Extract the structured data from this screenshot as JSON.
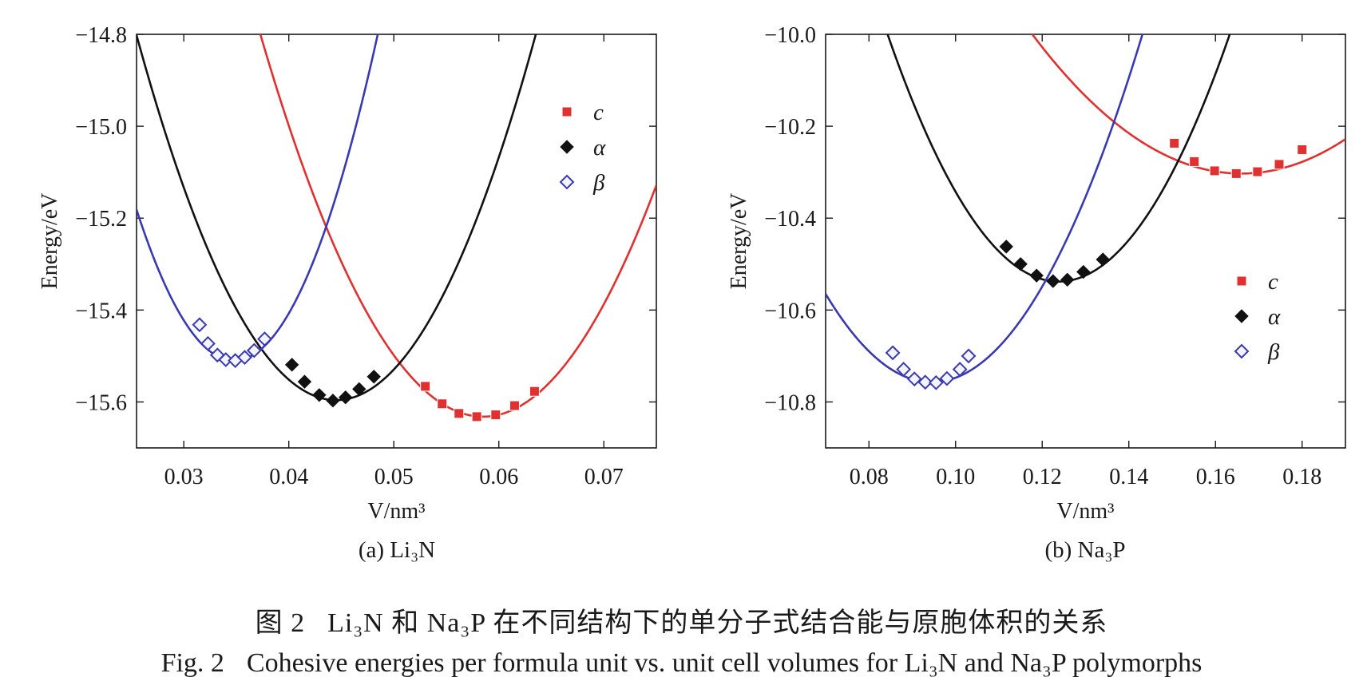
{
  "caption": {
    "cn_prefix": "图 2",
    "cn_text": "Li₃N 和 Na₃P 在不同结构下的单分子式结合能与原胞体积的关系",
    "en_prefix": "Fig. 2",
    "en_text": "Cohesive energies per formula unit vs. unit cell volumes for Li₃N and Na₃P polymorphs"
  },
  "colors": {
    "c": "#e03030",
    "alpha": "#111111",
    "beta": "#3a3ab0"
  },
  "chart_data": [
    {
      "type": "line",
      "panel_label": "(a) Li₃N",
      "xlabel": "V/nm³",
      "ylabel": "Energy/eV",
      "xlim": [
        0.0255,
        0.075
      ],
      "ylim": [
        -15.7,
        -14.8
      ],
      "xticks": [
        "0.03",
        "0.04",
        "0.05",
        "0.06",
        "0.07"
      ],
      "yticks": [
        "-14.8",
        "-15.0",
        "-15.2",
        "-15.4",
        "-15.6"
      ],
      "legend_position": "top-right",
      "series": [
        {
          "name": "c",
          "marker": "square",
          "color_key": "c",
          "curve": {
            "x0": 0.0585,
            "e0": -15.632,
            "k": 1850
          },
          "points": [
            [
              0.053,
              -15.566
            ],
            [
              0.0546,
              -15.604
            ],
            [
              0.0562,
              -15.625
            ],
            [
              0.0579,
              -15.632
            ],
            [
              0.0597,
              -15.628
            ],
            [
              0.0615,
              -15.608
            ],
            [
              0.0634,
              -15.577
            ]
          ]
        },
        {
          "name": "α",
          "marker": "diamond",
          "color_key": "alpha",
          "curve": {
            "x0": 0.0445,
            "e0": -15.596,
            "k": 2200
          },
          "points": [
            [
              0.0403,
              -15.519
            ],
            [
              0.0415,
              -15.556
            ],
            [
              0.0429,
              -15.585
            ],
            [
              0.0442,
              -15.597
            ],
            [
              0.0454,
              -15.59
            ],
            [
              0.0467,
              -15.572
            ],
            [
              0.0481,
              -15.545
            ]
          ]
        },
        {
          "name": "β",
          "marker": "diamond-open",
          "color_key": "beta",
          "curve": {
            "x0": 0.0348,
            "e0": -15.51,
            "k": 3800
          },
          "points": [
            [
              0.0315,
              -15.432
            ],
            [
              0.0323,
              -15.473
            ],
            [
              0.0332,
              -15.498
            ],
            [
              0.034,
              -15.508
            ],
            [
              0.0349,
              -15.51
            ],
            [
              0.0358,
              -15.503
            ],
            [
              0.0367,
              -15.488
            ],
            [
              0.0377,
              -15.463
            ]
          ]
        }
      ]
    },
    {
      "type": "line",
      "panel_label": "(b) Na₃P",
      "xlabel": "V/nm³",
      "ylabel": "Energy/eV",
      "xlim": [
        0.07,
        0.19
      ],
      "ylim": [
        -10.9,
        -10.0
      ],
      "xticks": [
        "0.08",
        "0.10",
        "0.12",
        "0.14",
        "0.16",
        "0.18"
      ],
      "yticks": [
        "-10.0",
        "-10.2",
        "-10.4",
        "-10.6",
        "-10.8"
      ],
      "legend_position": "right",
      "series": [
        {
          "name": "c",
          "marker": "square",
          "color_key": "c",
          "curve": {
            "x0": 0.166,
            "e0": -10.303,
            "k": 130
          },
          "points": [
            [
              0.1505,
              -10.237
            ],
            [
              0.1551,
              -10.277
            ],
            [
              0.1598,
              -10.297
            ],
            [
              0.1648,
              -10.303
            ],
            [
              0.1697,
              -10.299
            ],
            [
              0.1747,
              -10.283
            ],
            [
              0.18,
              -10.251
            ]
          ]
        },
        {
          "name": "α",
          "marker": "diamond",
          "color_key": "alpha",
          "curve": {
            "x0": 0.1238,
            "e0": -10.538,
            "k": 345
          },
          "points": [
            [
              0.1117,
              -10.462
            ],
            [
              0.115,
              -10.5
            ],
            [
              0.1187,
              -10.525
            ],
            [
              0.1225,
              -10.537
            ],
            [
              0.1258,
              -10.534
            ],
            [
              0.1295,
              -10.517
            ],
            [
              0.134,
              -10.49
            ]
          ]
        },
        {
          "name": "β",
          "marker": "diamond-open",
          "color_key": "beta",
          "curve": {
            "x0": 0.0945,
            "e0": -10.757,
            "k": 320
          },
          "points": [
            [
              0.0855,
              -10.693
            ],
            [
              0.088,
              -10.729
            ],
            [
              0.0905,
              -10.75
            ],
            [
              0.093,
              -10.757
            ],
            [
              0.0955,
              -10.758
            ],
            [
              0.098,
              -10.749
            ],
            [
              0.101,
              -10.729
            ],
            [
              0.103,
              -10.7
            ]
          ]
        }
      ]
    }
  ]
}
